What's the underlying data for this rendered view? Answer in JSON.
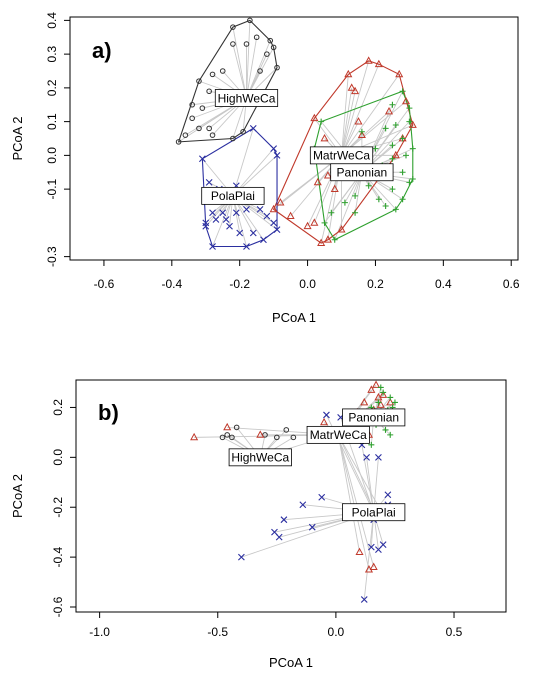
{
  "colors": {
    "HighWeCa": "#333333",
    "MatrWeCa": "#c0392b",
    "Panonian": "#2ea02e",
    "PolaPlai": "#2b2fa0",
    "spider": "#c8c8c8"
  },
  "chart_data": [
    {
      "type": "scatter",
      "panel_label": "a)",
      "xlabel": "PCoA 1",
      "ylabel": "PCoA 2",
      "xlim": [
        -0.7,
        0.62
      ],
      "ylim": [
        -0.31,
        0.41
      ],
      "xticks": [
        -0.6,
        -0.4,
        -0.2,
        0.0,
        0.2,
        0.4,
        0.6
      ],
      "xtick_labels": [
        "-0.6",
        "-0.4",
        "-0.2",
        "0.0",
        "0.2",
        "0.4",
        "0.6"
      ],
      "yticks": [
        -0.3,
        -0.1,
        0.0,
        0.1,
        0.2,
        0.3,
        0.4
      ],
      "ytick_labels": [
        "-0.3",
        "-0.1",
        "0.0",
        "0.1",
        "0.2",
        "0.3",
        "0.4"
      ],
      "hulls": true,
      "series": [
        {
          "name": "HighWeCa",
          "marker": "circle",
          "centroid": [
            -0.18,
            0.17
          ],
          "points": [
            [
              -0.22,
              0.38
            ],
            [
              -0.18,
              0.33
            ],
            [
              -0.15,
              0.35
            ],
            [
              -0.11,
              0.34
            ],
            [
              -0.1,
              0.32
            ],
            [
              -0.12,
              0.3
            ],
            [
              -0.22,
              0.33
            ],
            [
              -0.25,
              0.25
            ],
            [
              -0.28,
              0.24
            ],
            [
              -0.32,
              0.22
            ],
            [
              -0.29,
              0.19
            ],
            [
              -0.34,
              0.15
            ],
            [
              -0.31,
              0.14
            ],
            [
              -0.34,
              0.11
            ],
            [
              -0.32,
              0.08
            ],
            [
              -0.29,
              0.08
            ],
            [
              -0.28,
              0.06
            ],
            [
              -0.36,
              0.06
            ],
            [
              -0.38,
              0.04
            ],
            [
              -0.14,
              0.25
            ],
            [
              -0.22,
              0.05
            ],
            [
              -0.19,
              0.07
            ],
            [
              -0.09,
              0.26
            ],
            [
              -0.17,
              0.4
            ]
          ]
        },
        {
          "name": "MatrWeCa",
          "marker": "triangle",
          "centroid": [
            0.1,
            0.0
          ],
          "points": [
            [
              0.18,
              0.28
            ],
            [
              0.21,
              0.27
            ],
            [
              0.12,
              0.24
            ],
            [
              0.27,
              0.24
            ],
            [
              0.13,
              0.2
            ],
            [
              0.14,
              0.19
            ],
            [
              0.29,
              0.16
            ],
            [
              0.24,
              0.13
            ],
            [
              0.15,
              0.1
            ],
            [
              0.16,
              0.06
            ],
            [
              0.02,
              0.11
            ],
            [
              0.05,
              0.05
            ],
            [
              0.02,
              -0.01
            ],
            [
              0.03,
              -0.08
            ],
            [
              0.06,
              -0.06
            ],
            [
              0.08,
              -0.1
            ],
            [
              -0.08,
              -0.14
            ],
            [
              -0.1,
              -0.16
            ],
            [
              -0.05,
              -0.18
            ],
            [
              0.04,
              -0.26
            ],
            [
              0.06,
              -0.25
            ],
            [
              0.1,
              -0.22
            ],
            [
              0.0,
              -0.21
            ],
            [
              0.02,
              -0.2
            ],
            [
              0.31,
              0.09
            ],
            [
              0.28,
              0.05
            ],
            [
              0.26,
              0.0
            ],
            [
              0.16,
              -0.04
            ]
          ]
        },
        {
          "name": "Panonian",
          "marker": "plus",
          "centroid": [
            0.16,
            -0.05
          ],
          "points": [
            [
              0.28,
              0.19
            ],
            [
              0.25,
              0.15
            ],
            [
              0.3,
              0.14
            ],
            [
              0.3,
              0.1
            ],
            [
              0.26,
              0.09
            ],
            [
              0.23,
              0.08
            ],
            [
              0.28,
              0.05
            ],
            [
              0.25,
              0.03
            ],
            [
              0.31,
              0.02
            ],
            [
              0.29,
              0.0
            ],
            [
              0.25,
              -0.01
            ],
            [
              0.28,
              -0.05
            ],
            [
              0.24,
              -0.06
            ],
            [
              0.31,
              -0.07
            ],
            [
              0.25,
              -0.1
            ],
            [
              0.28,
              -0.13
            ],
            [
              0.23,
              -0.15
            ],
            [
              0.26,
              -0.16
            ],
            [
              0.21,
              -0.13
            ],
            [
              0.18,
              -0.09
            ],
            [
              0.14,
              -0.12
            ],
            [
              0.11,
              -0.14
            ],
            [
              0.07,
              -0.17
            ],
            [
              0.05,
              -0.2
            ],
            [
              0.08,
              -0.25
            ],
            [
              0.14,
              -0.17
            ],
            [
              0.02,
              0.02
            ],
            [
              0.2,
              0.02
            ],
            [
              0.04,
              0.1
            ],
            [
              0.16,
              0.07
            ],
            [
              0.22,
              -0.03
            ],
            [
              0.3,
              -0.08
            ]
          ]
        },
        {
          "name": "PolaPlai",
          "marker": "cross",
          "centroid": [
            -0.22,
            -0.12
          ],
          "points": [
            [
              -0.31,
              -0.01
            ],
            [
              -0.29,
              -0.08
            ],
            [
              -0.28,
              -0.17
            ],
            [
              -0.25,
              -0.17
            ],
            [
              -0.27,
              -0.19
            ],
            [
              -0.3,
              -0.2
            ],
            [
              -0.24,
              -0.19
            ],
            [
              -0.23,
              -0.21
            ],
            [
              -0.2,
              -0.23
            ],
            [
              -0.16,
              -0.23
            ],
            [
              -0.21,
              -0.17
            ],
            [
              -0.18,
              -0.16
            ],
            [
              -0.14,
              -0.16
            ],
            [
              -0.12,
              -0.18
            ],
            [
              -0.1,
              -0.2
            ],
            [
              -0.09,
              -0.22
            ],
            [
              -0.18,
              -0.27
            ],
            [
              -0.28,
              -0.27
            ],
            [
              -0.21,
              -0.09
            ],
            [
              -0.09,
              0.0
            ],
            [
              -0.16,
              0.08
            ],
            [
              -0.1,
              0.02
            ],
            [
              -0.26,
              -0.1
            ],
            [
              -0.3,
              -0.21
            ],
            [
              -0.13,
              -0.25
            ]
          ]
        }
      ]
    },
    {
      "type": "scatter",
      "panel_label": "b)",
      "xlabel": "PCoA 1",
      "ylabel": "PCoA 2",
      "xlim": [
        -1.1,
        0.72
      ],
      "ylim": [
        -0.62,
        0.31
      ],
      "xticks": [
        -1.0,
        -0.5,
        0.0,
        0.5
      ],
      "xtick_labels": [
        "-1.0",
        "-0.5",
        "0.0",
        "0.5"
      ],
      "yticks": [
        -0.6,
        -0.4,
        -0.2,
        0.0,
        0.2
      ],
      "ytick_labels": [
        "-0.6",
        "-0.4",
        "-0.2",
        "0.0",
        "0.2"
      ],
      "hulls": false,
      "series": [
        {
          "name": "HighWeCa",
          "marker": "circle",
          "centroid": [
            -0.32,
            0.0
          ],
          "points": [
            [
              -0.42,
              0.12
            ],
            [
              -0.44,
              0.08
            ],
            [
              -0.46,
              0.09
            ],
            [
              -0.48,
              0.08
            ],
            [
              -0.3,
              0.09
            ],
            [
              -0.18,
              0.08
            ],
            [
              -0.08,
              0.07
            ],
            [
              -0.21,
              0.11
            ],
            [
              -0.25,
              0.08
            ]
          ]
        },
        {
          "name": "MatrWeCa",
          "marker": "triangle",
          "centroid": [
            0.01,
            0.09
          ],
          "points": [
            [
              -0.6,
              0.08
            ],
            [
              -0.46,
              0.12
            ],
            [
              -0.32,
              0.09
            ],
            [
              -0.05,
              0.14
            ],
            [
              0.05,
              0.16
            ],
            [
              0.09,
              0.18
            ],
            [
              0.12,
              0.22
            ],
            [
              0.15,
              0.27
            ],
            [
              0.17,
              0.29
            ],
            [
              0.2,
              0.25
            ],
            [
              0.19,
              0.21
            ],
            [
              0.16,
              0.19
            ],
            [
              0.21,
              0.18
            ],
            [
              0.14,
              0.09
            ],
            [
              0.16,
              -0.21
            ],
            [
              0.2,
              -0.23
            ],
            [
              0.1,
              -0.38
            ],
            [
              0.14,
              -0.45
            ],
            [
              0.16,
              -0.44
            ],
            [
              0.23,
              0.22
            ],
            [
              0.18,
              0.24
            ]
          ]
        },
        {
          "name": "Panonian",
          "marker": "plus",
          "centroid": [
            0.16,
            0.16
          ],
          "points": [
            [
              0.2,
              0.26
            ],
            [
              0.23,
              0.24
            ],
            [
              0.18,
              0.22
            ],
            [
              0.15,
              0.2
            ],
            [
              0.22,
              0.19
            ],
            [
              0.24,
              0.2
            ],
            [
              0.26,
              0.17
            ],
            [
              0.19,
              0.15
            ],
            [
              0.17,
              0.13
            ],
            [
              0.21,
              0.11
            ],
            [
              0.23,
              0.09
            ],
            [
              0.15,
              0.05
            ],
            [
              0.1,
              0.16
            ],
            [
              0.19,
              0.28
            ],
            [
              0.25,
              0.22
            ],
            [
              0.12,
              0.12
            ],
            [
              0.22,
              0.14
            ]
          ]
        },
        {
          "name": "PolaPlai",
          "marker": "cross",
          "centroid": [
            0.16,
            -0.22
          ],
          "points": [
            [
              -0.4,
              -0.4
            ],
            [
              -0.26,
              -0.3
            ],
            [
              -0.24,
              -0.32
            ],
            [
              -0.22,
              -0.25
            ],
            [
              -0.14,
              -0.19
            ],
            [
              -0.1,
              -0.28
            ],
            [
              -0.06,
              -0.16
            ],
            [
              0.12,
              -0.57
            ],
            [
              0.15,
              -0.36
            ],
            [
              0.18,
              -0.37
            ],
            [
              0.2,
              -0.35
            ],
            [
              0.22,
              -0.19
            ],
            [
              0.24,
              -0.2
            ],
            [
              0.23,
              -0.23
            ],
            [
              0.22,
              -0.15
            ],
            [
              0.13,
              0.0
            ],
            [
              0.18,
              0.0
            ],
            [
              0.11,
              0.05
            ],
            [
              -0.04,
              0.17
            ],
            [
              0.02,
              0.16
            ],
            [
              0.16,
              -0.25
            ],
            [
              0.2,
              -0.21
            ]
          ]
        }
      ]
    }
  ]
}
